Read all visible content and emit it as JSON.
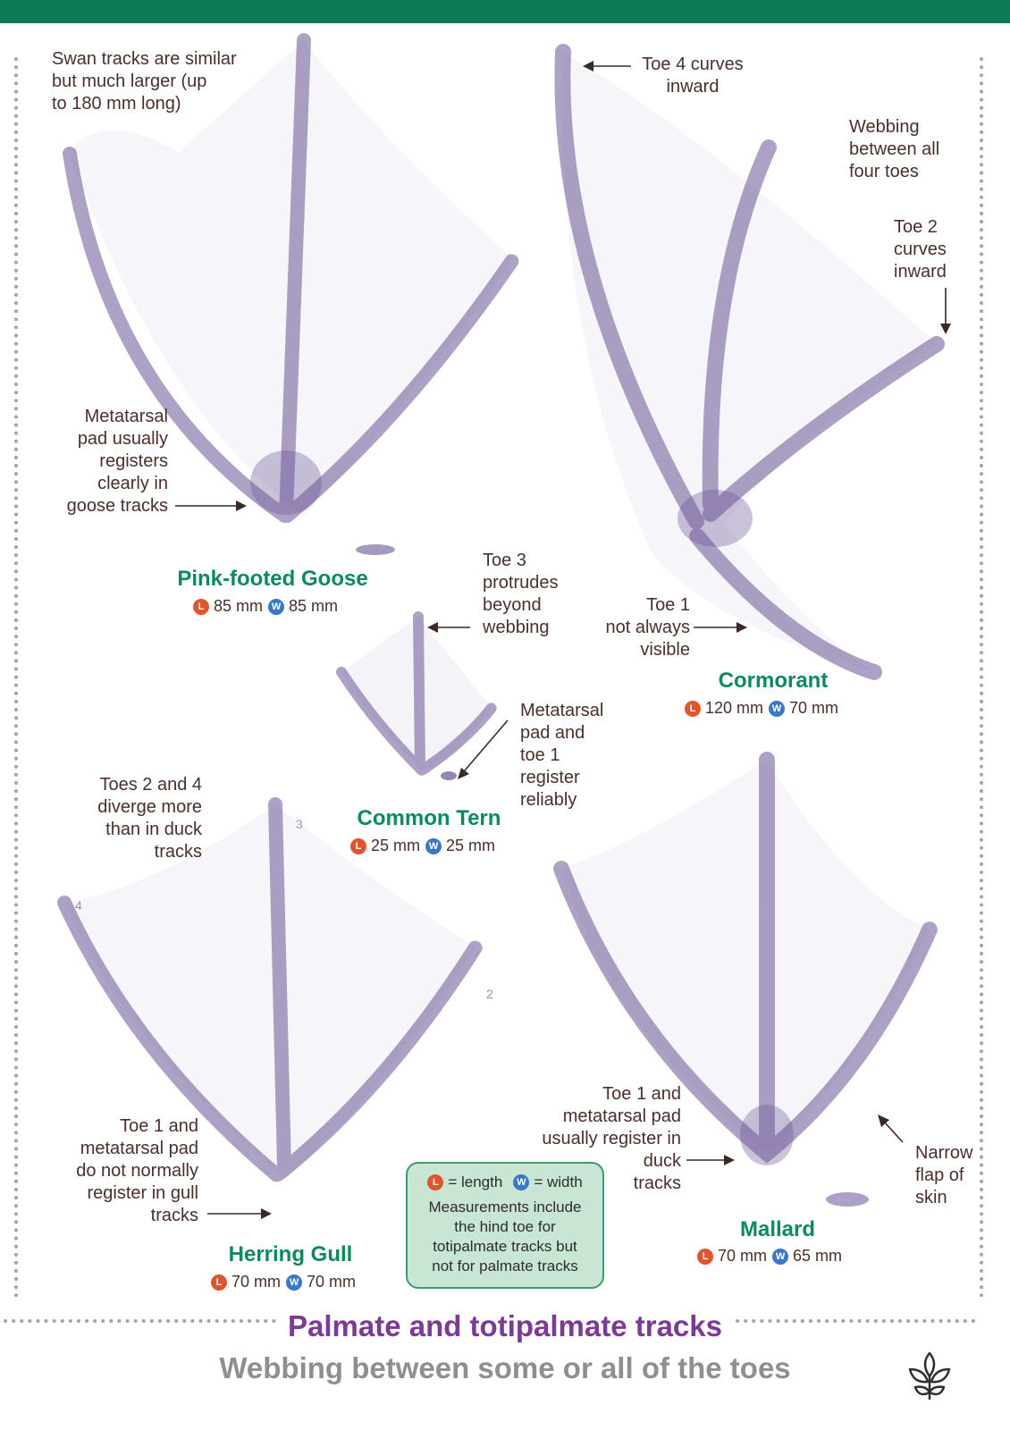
{
  "accent_color": "#0d7a55",
  "name_color": "#0d8a5a",
  "track_color": "#6a5495",
  "length_badge_color": "#e0552b",
  "width_badge_color": "#3a78c7",
  "badges": {
    "length": "L",
    "width": "W"
  },
  "species": {
    "goose": {
      "name": "Pink-footed Goose",
      "length": "85 mm",
      "width": "85 mm"
    },
    "cormorant": {
      "name": "Cormorant",
      "length": "120 mm",
      "width": "70 mm"
    },
    "tern": {
      "name": "Common Tern",
      "length": "25 mm",
      "width": "25 mm"
    },
    "gull": {
      "name": "Herring Gull",
      "length": "70 mm",
      "width": "70 mm"
    },
    "mallard": {
      "name": "Mallard",
      "length": "70 mm",
      "width": "65 mm"
    }
  },
  "annotations": {
    "swan": "Swan tracks are similar\nbut much larger (up\nto 180 mm long)",
    "goose_pad": "Metatarsal\npad usually\nregisters\nclearly in\ngoose tracks",
    "toe4_curves": "Toe 4 curves\ninward",
    "webbing_all": "Webbing\nbetween all\nfour toes",
    "toe2_curves": "Toe 2\ncurves\ninward",
    "toe3_protrudes": "Toe 3\nprotrudes\nbeyond\nwebbing",
    "toe1_visible": "Toe 1\nnot always\nvisible",
    "tern_pad": "Metatarsal\npad and\ntoe 1\nregister\nreliably",
    "toes_diverge": "Toes 2 and 4\ndiverge more\nthan in duck\ntracks",
    "gull_toe1": "Toe 1 and\nmetatarsal pad\ndo not normally\nregister in gull\ntracks",
    "duck_toe1": "Toe 1 and\nmetatarsal pad\nusually register in\nduck\ntracks",
    "narrow_flap": "Narrow\nflap of\nskin"
  },
  "toe_numbers": {
    "three": "3",
    "four": "4",
    "two": "2"
  },
  "legend": {
    "length_text": "= length",
    "width_text": "= width",
    "note": "Measurements include\nthe hind toe for\ntotipalmate tracks but\nnot for palmate tracks"
  },
  "title": "Palmate and totipalmate tracks",
  "subtitle": "Webbing between some or all of the toes",
  "logo_icon": "leaf-logo-icon"
}
